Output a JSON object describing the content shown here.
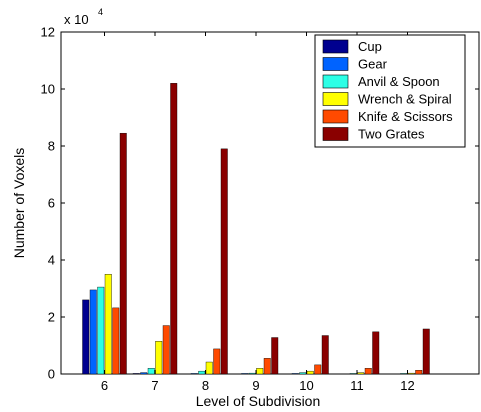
{
  "chart_data": {
    "type": "bar",
    "xlabel": "Level of Subdivision",
    "ylabel": "Number of Voxels",
    "y_multiplier": {
      "base": "x 10",
      "exponent": "4"
    },
    "categories": [
      "6",
      "7",
      "8",
      "9",
      "10",
      "11",
      "12"
    ],
    "ylim": [
      0,
      12
    ],
    "yticks": [
      "0",
      "2",
      "4",
      "6",
      "8",
      "10",
      "12"
    ],
    "legend_position": "top-right",
    "grid": false,
    "series": [
      {
        "name": "Cup",
        "color": "#00008f",
        "values": [
          2.6,
          0.02,
          0.01,
          0.01,
          0.01,
          0.01,
          0.01
        ]
      },
      {
        "name": "Gear",
        "color": "#0063ff",
        "values": [
          2.95,
          0.05,
          0.02,
          0.02,
          0.02,
          0.01,
          0.01
        ]
      },
      {
        "name": "Anvil & Spoon",
        "color": "#2cffe6",
        "values": [
          3.05,
          0.2,
          0.1,
          0.03,
          0.05,
          0.02,
          0.02
        ]
      },
      {
        "name": "Wrench & Spiral",
        "color": "#ffff00",
        "values": [
          3.5,
          1.15,
          0.42,
          0.2,
          0.1,
          0.05,
          0.03
        ]
      },
      {
        "name": "Knife & Scissors",
        "color": "#ff4a00",
        "values": [
          2.32,
          1.7,
          0.88,
          0.55,
          0.32,
          0.2,
          0.13
        ]
      },
      {
        "name": "Two Grates",
        "color": "#8a0000",
        "values": [
          8.45,
          10.2,
          7.9,
          1.28,
          1.35,
          1.48,
          1.58
        ]
      }
    ]
  }
}
